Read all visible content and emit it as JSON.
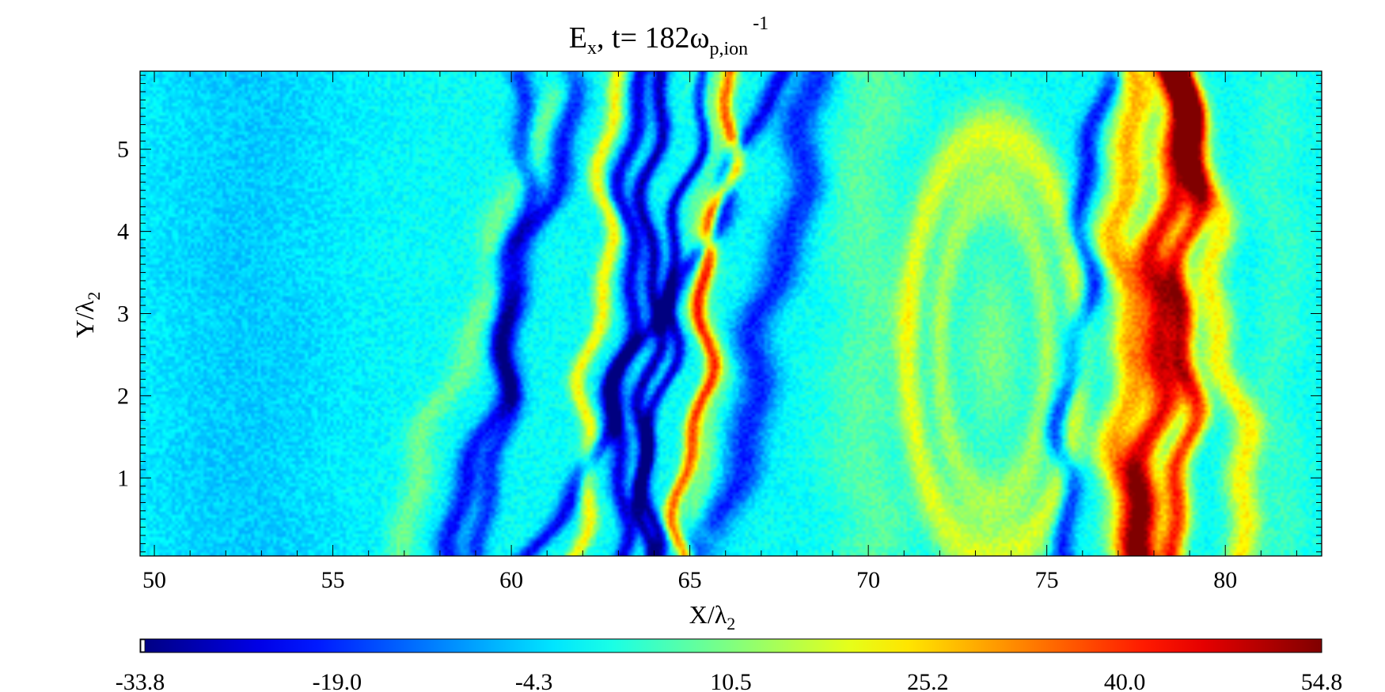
{
  "chart_data": {
    "type": "heatmap",
    "title": {
      "symbol": "E",
      "symbol_sub": "x",
      "time_prefix": ", t=  182ω",
      "time_sub": "p,ion",
      "time_sup": "-1"
    },
    "xlabel": {
      "main": "X/λ",
      "sub": "2"
    },
    "ylabel": {
      "main": "Y/λ",
      "sub": "2"
    },
    "xlim": [
      49.6,
      82.7
    ],
    "ylim": [
      0.05,
      5.95
    ],
    "x_ticks": [
      "50",
      "55",
      "60",
      "65",
      "70",
      "75",
      "80"
    ],
    "y_ticks": [
      "1",
      "2",
      "3",
      "4",
      "5"
    ],
    "colorbar": {
      "range": [
        -33.8,
        54.8
      ],
      "tick_labels": [
        "-33.8",
        "-19.0",
        "-4.3",
        "10.5",
        "25.2",
        "40.0",
        "54.8"
      ],
      "colormap": "jet"
    },
    "field": {
      "background": 0.0,
      "features": [
        {
          "kind": "band",
          "x0": 52.5,
          "y0": 3.0,
          "tilt": 0.0,
          "width": 3.0,
          "value": -5.0
        },
        {
          "kind": "band",
          "x0": 57.8,
          "y0": 1.5,
          "tilt": 0.8,
          "width": 0.45,
          "value": 9.0
        },
        {
          "kind": "band",
          "x0": 59.5,
          "y0": 2.0,
          "tilt": 0.6,
          "width": 0.35,
          "value": -22.0
        },
        {
          "kind": "band",
          "x0": 60.2,
          "y0": 4.5,
          "tilt": 0.2,
          "width": 0.3,
          "value": -19.0
        },
        {
          "kind": "band",
          "x0": 61.8,
          "y0": 1.0,
          "tilt": 1.2,
          "width": 0.3,
          "value": -24.0
        },
        {
          "kind": "band",
          "x0": 62.5,
          "y0": 3.5,
          "tilt": 0.2,
          "width": 0.25,
          "value": 22.0
        },
        {
          "kind": "band",
          "x0": 63.2,
          "y0": 3.0,
          "tilt": 0.1,
          "width": 0.25,
          "value": -26.0
        },
        {
          "kind": "band",
          "x0": 63.9,
          "y0": 3.0,
          "tilt": 0.05,
          "width": 0.22,
          "value": -30.0
        },
        {
          "kind": "band",
          "x0": 64.8,
          "y0": 4.2,
          "tilt": 0.3,
          "width": 0.18,
          "value": -28.0
        },
        {
          "kind": "band",
          "x0": 65.7,
          "y0": 4.0,
          "tilt": 0.25,
          "width": 0.22,
          "value": 34.0
        },
        {
          "kind": "band",
          "x0": 67.2,
          "y0": 3.0,
          "tilt": 0.5,
          "width": 0.55,
          "value": -20.0
        },
        {
          "kind": "band",
          "x0": 65.5,
          "y0": 1.2,
          "tilt": 0.0,
          "width": 0.4,
          "value": 10.0
        },
        {
          "kind": "ring",
          "cx": 73.5,
          "cy": 2.6,
          "rx": 2.4,
          "ry": 2.6,
          "width": 0.35,
          "value": 18.0
        },
        {
          "kind": "ring",
          "cx": 73.5,
          "cy": 2.6,
          "rx": 1.5,
          "ry": 1.9,
          "width": 0.3,
          "value": 13.0
        },
        {
          "kind": "blob",
          "cx": 73.5,
          "cy": 2.6,
          "rx": 0.9,
          "ry": 1.2,
          "value": 10.0
        },
        {
          "kind": "band",
          "x0": 70.0,
          "y0": 3.0,
          "tilt": 0.0,
          "width": 1.1,
          "value": 7.0
        },
        {
          "kind": "band",
          "x0": 76.0,
          "y0": 3.6,
          "tilt": 0.2,
          "width": 0.3,
          "value": -22.0
        },
        {
          "kind": "band",
          "x0": 77.2,
          "y0": 3.0,
          "tilt": 0.0,
          "width": 0.55,
          "value": 28.0
        },
        {
          "kind": "band",
          "x0": 78.1,
          "y0": 2.5,
          "tilt": 0.15,
          "width": 0.5,
          "value": 45.0
        },
        {
          "kind": "band",
          "x0": 78.9,
          "y0": 3.0,
          "tilt": 0.05,
          "width": 0.35,
          "value": 40.0
        },
        {
          "kind": "band",
          "x0": 79.8,
          "y0": 3.2,
          "tilt": -0.3,
          "width": 0.45,
          "value": 22.0
        },
        {
          "kind": "band",
          "x0": 81.5,
          "y0": 3.0,
          "tilt": 0.0,
          "width": 0.7,
          "value": 4.0
        }
      ]
    }
  }
}
